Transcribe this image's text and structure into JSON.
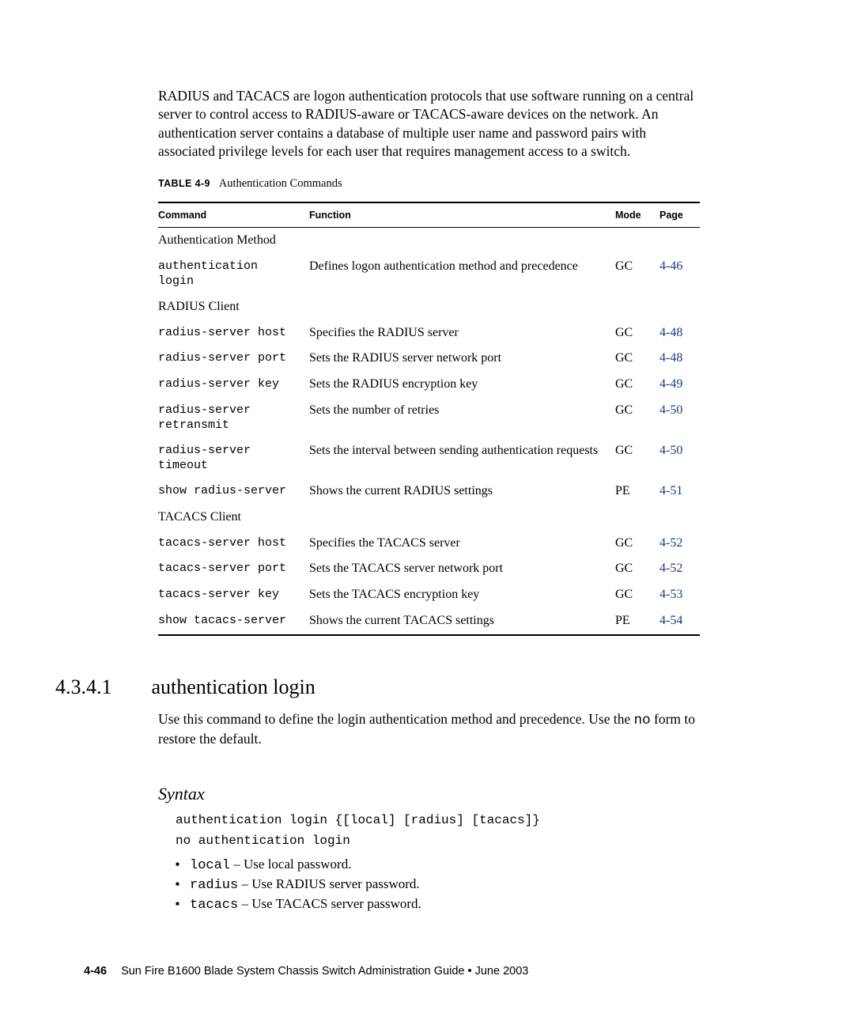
{
  "intro_text": "RADIUS and TACACS are logon authentication protocols that use software running on a central server to control access to RADIUS-aware or TACACS-aware devices on the network. An authentication server contains a database of multiple user name and password pairs with associated privilege levels for each user that requires management access to a switch.",
  "table": {
    "caption_label": "TABLE 4-9",
    "caption_text": "Authentication Commands",
    "headers": {
      "command": "Command",
      "function": "Function",
      "mode": "Mode",
      "page": "Page"
    },
    "rows": [
      {
        "type": "section",
        "command": "Authentication Method"
      },
      {
        "type": "cmd",
        "command": "authentication\nlogin",
        "function": "Defines logon authentication method and precedence",
        "mode": "GC",
        "page": "4-46"
      },
      {
        "type": "section",
        "command": "RADIUS Client"
      },
      {
        "type": "cmd",
        "command": "radius-server host",
        "function": "Specifies the RADIUS server",
        "mode": "GC",
        "page": "4-48"
      },
      {
        "type": "cmd",
        "command": "radius-server port",
        "function": "Sets the RADIUS server network port",
        "mode": "GC",
        "page": "4-48"
      },
      {
        "type": "cmd",
        "command": "radius-server key",
        "function": "Sets the RADIUS encryption key",
        "mode": "GC",
        "page": "4-49"
      },
      {
        "type": "cmd",
        "command": "radius-server\nretransmit",
        "function": "Sets the number of retries",
        "mode": "GC",
        "page": "4-50"
      },
      {
        "type": "cmd",
        "command": "radius-server\ntimeout",
        "function": "Sets the interval between sending authentication requests",
        "mode": "GC",
        "page": "4-50"
      },
      {
        "type": "cmd",
        "command": "show radius-server",
        "function": "Shows the current RADIUS settings",
        "mode": "PE",
        "page": "4-51"
      },
      {
        "type": "section",
        "command": "TACACS Client"
      },
      {
        "type": "cmd",
        "command": "tacacs-server host",
        "function": "Specifies the TACACS server",
        "mode": "GC",
        "page": "4-52"
      },
      {
        "type": "cmd",
        "command": "tacacs-server port",
        "function": "Sets the TACACS server network port",
        "mode": "GC",
        "page": "4-52"
      },
      {
        "type": "cmd",
        "command": "tacacs-server key",
        "function": "Sets the TACACS encryption key",
        "mode": "GC",
        "page": "4-53"
      },
      {
        "type": "cmd",
        "command": "show tacacs-server",
        "function": "Shows the current TACACS settings",
        "mode": "PE",
        "page": "4-54"
      }
    ]
  },
  "section": {
    "number": "4.3.4.1",
    "title": "authentication login",
    "text_before_mono": "Use this command to define the login authentication method and precedence. Use the ",
    "mono_word": "no",
    "text_after_mono": " form to restore the default."
  },
  "syntax": {
    "heading": "Syntax",
    "line1": "authentication login {[local] [radius] [tacacs]}",
    "line2": "no authentication login",
    "params": [
      {
        "kw": "local",
        "desc": " – Use local password."
      },
      {
        "kw": "radius",
        "desc": " – Use RADIUS server password."
      },
      {
        "kw": "tacacs",
        "desc": " – Use TACACS server password."
      }
    ]
  },
  "footer": {
    "page_num": "4-46",
    "text": "Sun Fire B1600 Blade System Chassis Switch Administration Guide • June 2003"
  },
  "colors": {
    "link": "#1a3a8a",
    "text": "#000000",
    "background": "#ffffff"
  }
}
